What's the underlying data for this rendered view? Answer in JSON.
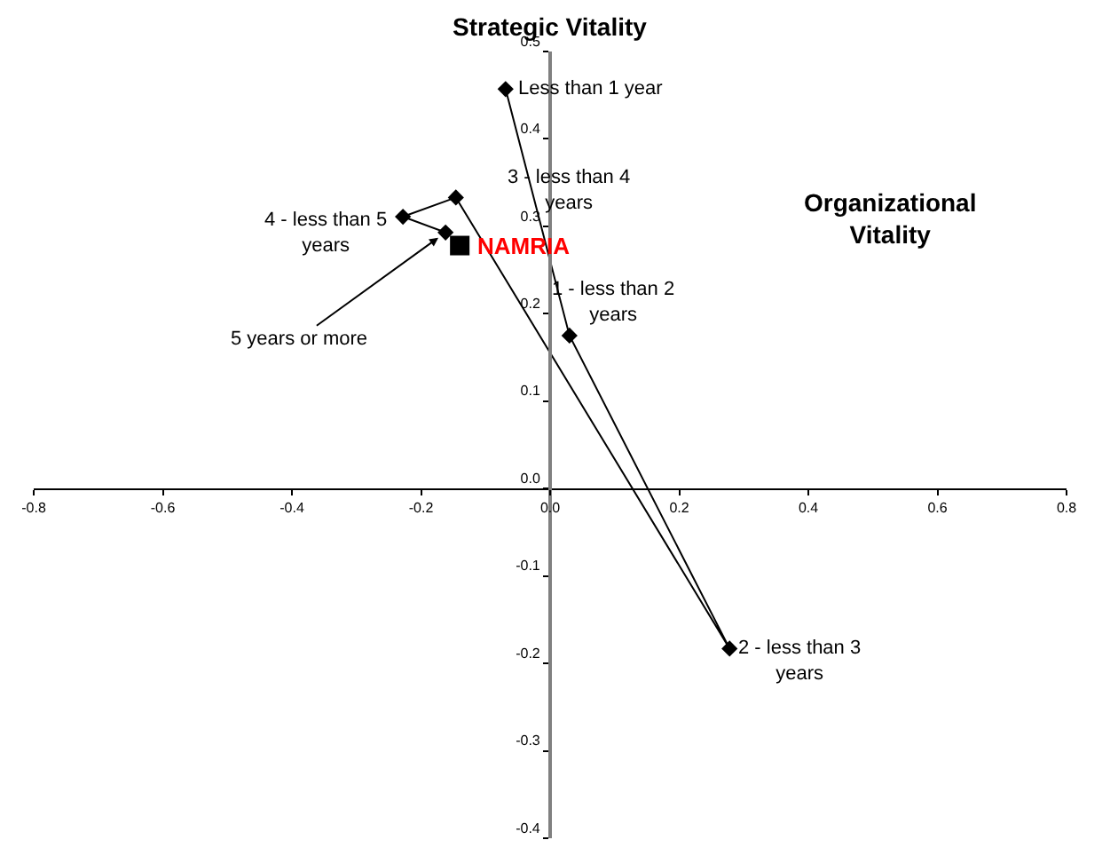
{
  "chart_data": {
    "type": "line",
    "xlabel": "Organizational\nVitality",
    "ylabel": "Strategic Vitality",
    "xlim": [
      -0.8,
      0.8
    ],
    "ylim": [
      -0.4,
      0.5
    ],
    "xticks": [
      -0.8,
      -0.6,
      -0.4,
      -0.2,
      {
        "value": 0,
        "label": "0.0"
      },
      0.2,
      0.4,
      0.6,
      0.8
    ],
    "yticks": [
      -0.4,
      -0.3,
      -0.2,
      -0.1,
      {
        "value": 0,
        "label": "0.0"
      },
      0.1,
      0.2,
      0.3,
      0.4,
      0.5
    ],
    "grid": false,
    "marker": "diamond",
    "line_style": "solid",
    "series": [
      {
        "color": "#000000",
        "x": [
          -0.069,
          0.03,
          0.278,
          -0.146,
          -0.228,
          -0.162
        ],
        "values": [
          0.457,
          0.175,
          -0.183,
          0.333,
          0.311,
          0.293
        ]
      },
      {
        "type": "scatter",
        "name": "NAMRIA",
        "color": "#000000",
        "marker": "square",
        "x": [
          -0.14
        ],
        "values": [
          0.278
        ]
      }
    ],
    "annotations": [
      {
        "text": "Less than 1 year",
        "x": -0.069,
        "y": 0.457
      },
      {
        "text": "1 - less than 2\nyears",
        "x": 0.03,
        "y": 0.175
      },
      {
        "text": "2 - less than 3\nyears",
        "x": 0.278,
        "y": -0.183
      },
      {
        "text": "3 - less than 4\nyears",
        "x": -0.146,
        "y": 0.333
      },
      {
        "text": "4 - less than 5\nyears",
        "x": -0.228,
        "y": 0.311
      },
      {
        "text": "5 years or more",
        "x": -0.162,
        "y": 0.293
      }
    ]
  }
}
